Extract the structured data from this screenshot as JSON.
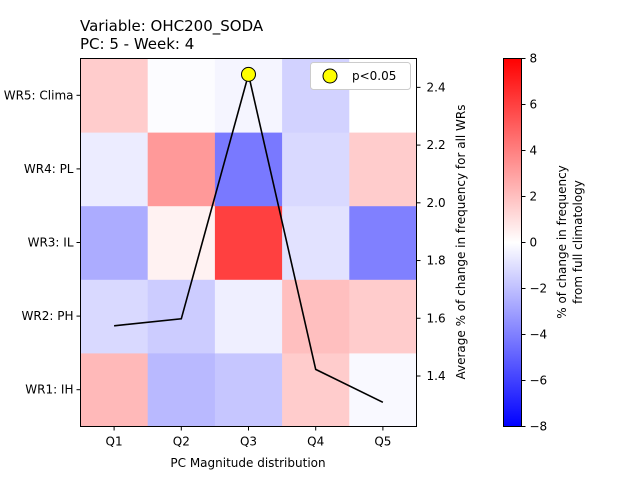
{
  "chart_data": {
    "type": "heatmap",
    "title_line1": "Variable: OHC200_SODA",
    "title_line2": "PC: 5 - Week: 4",
    "xlabel": "PC Magnitude distribution",
    "x_categories": [
      "Q1",
      "Q2",
      "Q3",
      "Q4",
      "Q5"
    ],
    "y_categories": [
      "WR1: IH",
      "WR2: PH",
      "WR3: IL",
      "WR4: PL",
      "WR5: Clima"
    ],
    "heatmap_values": [
      [
        2.2,
        -2.2,
        -1.8,
        1.6,
        -0.2
      ],
      [
        -1.2,
        -1.6,
        -0.5,
        2.0,
        1.6
      ],
      [
        -2.6,
        0.4,
        6.0,
        -0.9,
        -4.0
      ],
      [
        -0.6,
        3.2,
        -4.2,
        -1.2,
        1.6
      ],
      [
        1.6,
        -0.1,
        -0.3,
        -1.4,
        0.0
      ]
    ],
    "colorbar": {
      "label_line1": "% of change in frequency",
      "label_line2": "from full climatology",
      "min": -8,
      "max": 8,
      "ticks": [
        "8",
        "6",
        "4",
        "2",
        "0",
        "−2",
        "−4",
        "−6",
        "−8"
      ],
      "colormap": "bwr"
    },
    "line_series": {
      "y2label": "Average % of change in frequency for all WRs",
      "y2_ticks": [
        "2.4",
        "2.2",
        "2.0",
        "1.8",
        "1.6",
        "1.4"
      ],
      "y2lim": [
        1.225,
        2.5
      ],
      "values": [
        1.574,
        1.598,
        2.445,
        1.423,
        1.309
      ],
      "color": "#000000"
    },
    "significance": {
      "legend_label": "p<0.05",
      "marker_color": "#ffff00",
      "points": [
        {
          "category": "Q3",
          "value": 2.445
        }
      ]
    }
  }
}
